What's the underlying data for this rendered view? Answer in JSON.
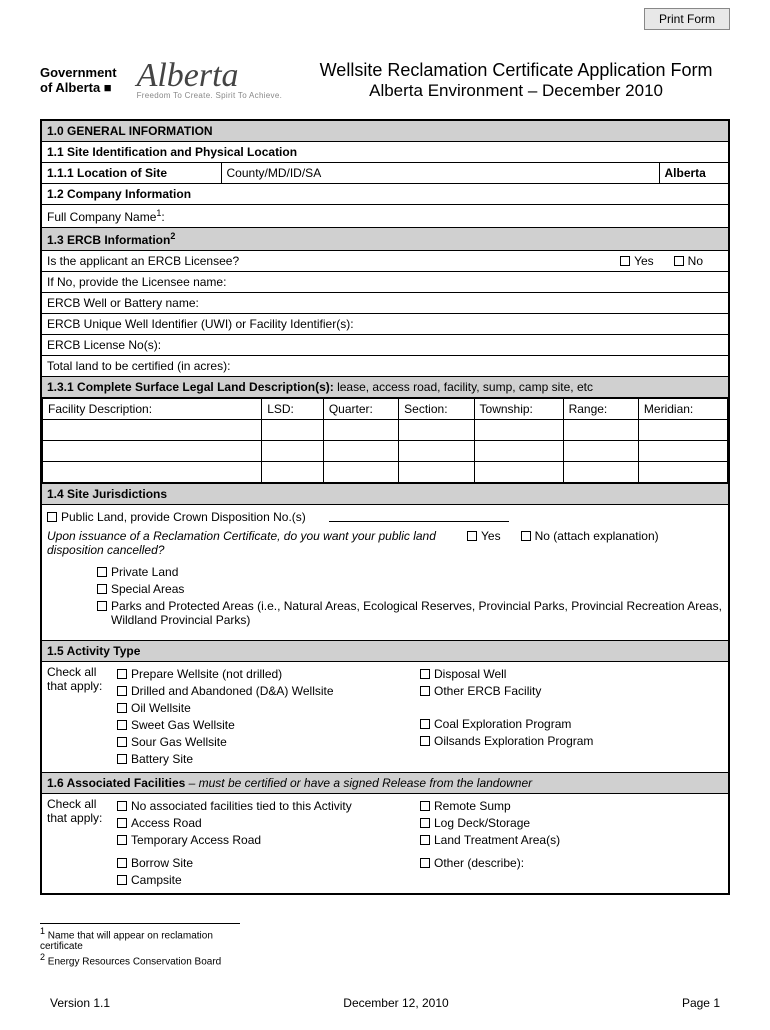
{
  "print_button": "Print Form",
  "header": {
    "gov1": "Government",
    "gov2": "of Alberta ■",
    "logo": "Alberta",
    "tagline": "Freedom To Create. Spirit To Achieve.",
    "title1": "Wellsite Reclamation Certificate Application Form",
    "title2": "Alberta Environment – December 2010"
  },
  "s1": {
    "head": "1.0 GENERAL INFORMATION",
    "s11": "1.1    Site Identification and Physical Location",
    "s111_label": "1.1.1  Location of Site",
    "s111_mid": "County/MD/ID/SA",
    "s111_right": "Alberta",
    "s12": "1.2   Company Information",
    "company": "Full Company Name",
    "sup1": "1",
    "colon": ":",
    "s13": "1.3 ERCB Information",
    "sup2": "2",
    "q_licensee": "Is the applicant an ERCB Licensee?",
    "yes": "Yes",
    "no": "No",
    "licensee_name": "If No, provide the Licensee name:",
    "well_name": "ERCB Well or Battery name:",
    "uwi": "ERCB Unique Well Identifier (UWI) or Facility Identifier(s):",
    "license_no": "ERCB License No(s):",
    "land_acres": "Total land to be certified (in acres):",
    "s131_a": "1.3.1 Complete Surface Legal Land Description(s): ",
    "s131_b": "lease, access road, facility, sump, camp site, etc",
    "cols": {
      "facility": "Facility  Description:",
      "lsd": "LSD:",
      "quarter": "Quarter:",
      "section": "Section:",
      "township": "Township:",
      "range": "Range:",
      "meridian": "Meridian:"
    }
  },
  "s14": {
    "head": "1.4 Site Jurisdictions",
    "public": "Public Land, provide Crown Disposition No.(s)",
    "q_cancel": "Upon issuance of a Reclamation Certificate, do you want your public land disposition cancelled?",
    "yes": "Yes",
    "no_explain": "No (attach explanation)",
    "private": "Private Land",
    "special": "Special Areas",
    "parks": "Parks and Protected Areas (i.e., Natural Areas, Ecological Reserves, Provincial Parks, Provincial Recreation Areas, Wildland Provincial Parks)"
  },
  "s15": {
    "head": "1.5 Activity Type",
    "check_all": "Check all that apply:",
    "left": [
      "Prepare Wellsite (not drilled)",
      "Drilled and Abandoned (D&A) Wellsite",
      "Oil Wellsite",
      "Sweet Gas Wellsite",
      "Sour Gas Wellsite",
      "Battery Site"
    ],
    "right": [
      "Disposal Well",
      "Other ERCB Facility",
      "",
      "Coal Exploration Program",
      "Oilsands Exploration Program",
      ""
    ]
  },
  "s16": {
    "head_a": "1.6 Associated Facilities",
    "head_b": " – must be certified or have a signed Release from the landowner",
    "check_all": "Check all that apply:",
    "left": [
      "No associated facilities tied to this Activity",
      "Access Road",
      "Temporary Access Road",
      "Borrow Site",
      "Campsite"
    ],
    "right": [
      "Remote Sump",
      "Log Deck/Storage",
      "Land Treatment Area(s)",
      "Other (describe):",
      ""
    ]
  },
  "footnotes": {
    "f1": " Name that will appear on reclamation certificate",
    "f2": " Energy Resources Conservation Board"
  },
  "footer": {
    "version": "Version 1.1",
    "date": "December 12, 2010",
    "page": "Page 1"
  }
}
